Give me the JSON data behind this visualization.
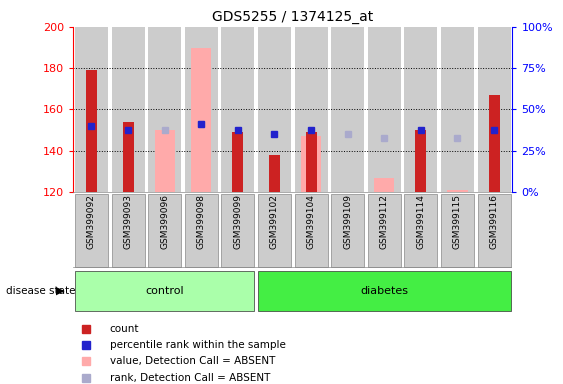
{
  "title": "GDS5255 / 1374125_at",
  "samples": [
    "GSM399092",
    "GSM399093",
    "GSM399096",
    "GSM399098",
    "GSM399099",
    "GSM399102",
    "GSM399104",
    "GSM399109",
    "GSM399112",
    "GSM399114",
    "GSM399115",
    "GSM399116"
  ],
  "n_control": 5,
  "n_diabetes": 7,
  "ylim_left": [
    120,
    200
  ],
  "ylim_right": [
    0,
    100
  ],
  "yticks_left": [
    120,
    140,
    160,
    180,
    200
  ],
  "yticks_right": [
    0,
    25,
    50,
    75,
    100
  ],
  "red_bars": [
    179,
    154,
    null,
    null,
    149,
    138,
    149,
    null,
    null,
    150,
    null,
    167
  ],
  "pink_bars": [
    null,
    null,
    150,
    190,
    null,
    null,
    147,
    null,
    127,
    null,
    121,
    null
  ],
  "blue_squares": [
    152,
    150,
    null,
    153,
    150,
    148,
    150,
    null,
    null,
    150,
    null,
    150
  ],
  "light_blue_squares": [
    null,
    null,
    150,
    153,
    null,
    null,
    null,
    148,
    146,
    null,
    146,
    null
  ],
  "red_color": "#cc2222",
  "pink_color": "#ffaaaa",
  "blue_color": "#2222cc",
  "light_blue_color": "#aaaacc",
  "plot_bg_color": "#ffffff",
  "col_bg_color": "#cccccc",
  "control_color": "#aaffaa",
  "diabetes_color": "#44ee44",
  "legend_items": [
    {
      "label": "count",
      "color": "#cc2222"
    },
    {
      "label": "percentile rank within the sample",
      "color": "#2222cc"
    },
    {
      "label": "value, Detection Call = ABSENT",
      "color": "#ffaaaa"
    },
    {
      "label": "rank, Detection Call = ABSENT",
      "color": "#aaaacc"
    }
  ]
}
